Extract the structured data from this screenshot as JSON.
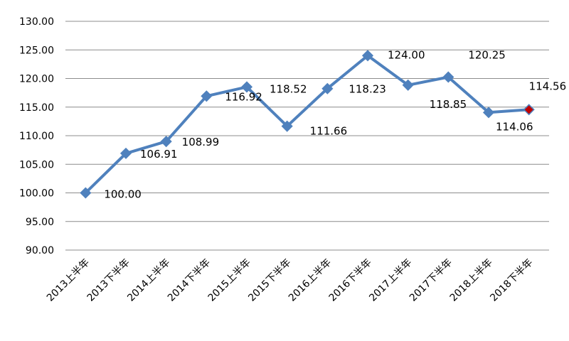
{
  "chart_data": {
    "type": "line",
    "title": "",
    "xlabel": "",
    "ylabel": "",
    "ylim": [
      90,
      130
    ],
    "ytick_step": 5,
    "ytick_labels": [
      "90.00",
      "95.00",
      "100.00",
      "105.00",
      "110.00",
      "115.00",
      "120.00",
      "125.00",
      "130.00"
    ],
    "grid": true,
    "categories": [
      "2013上半年",
      "2013下半年",
      "2014上半年",
      "2014下半年",
      "2015上半年",
      "2015下半年",
      "2016上半年",
      "2016下半年",
      "2017上半年",
      "2017下半年",
      "2018上半年",
      "2018下半年"
    ],
    "series": [
      {
        "values": [
          100.0,
          106.91,
          108.99,
          116.92,
          118.52,
          111.66,
          118.23,
          124.0,
          118.85,
          120.25,
          114.06,
          114.56
        ],
        "labels": [
          "100.00",
          "106.91",
          "108.99",
          "116.92",
          "118.52",
          "111.66",
          "118.23",
          "124.00",
          "118.85",
          "120.25",
          "114.06",
          "114.56"
        ],
        "color": "#4f81bd",
        "highlight_last_color": "#c00000"
      }
    ]
  }
}
